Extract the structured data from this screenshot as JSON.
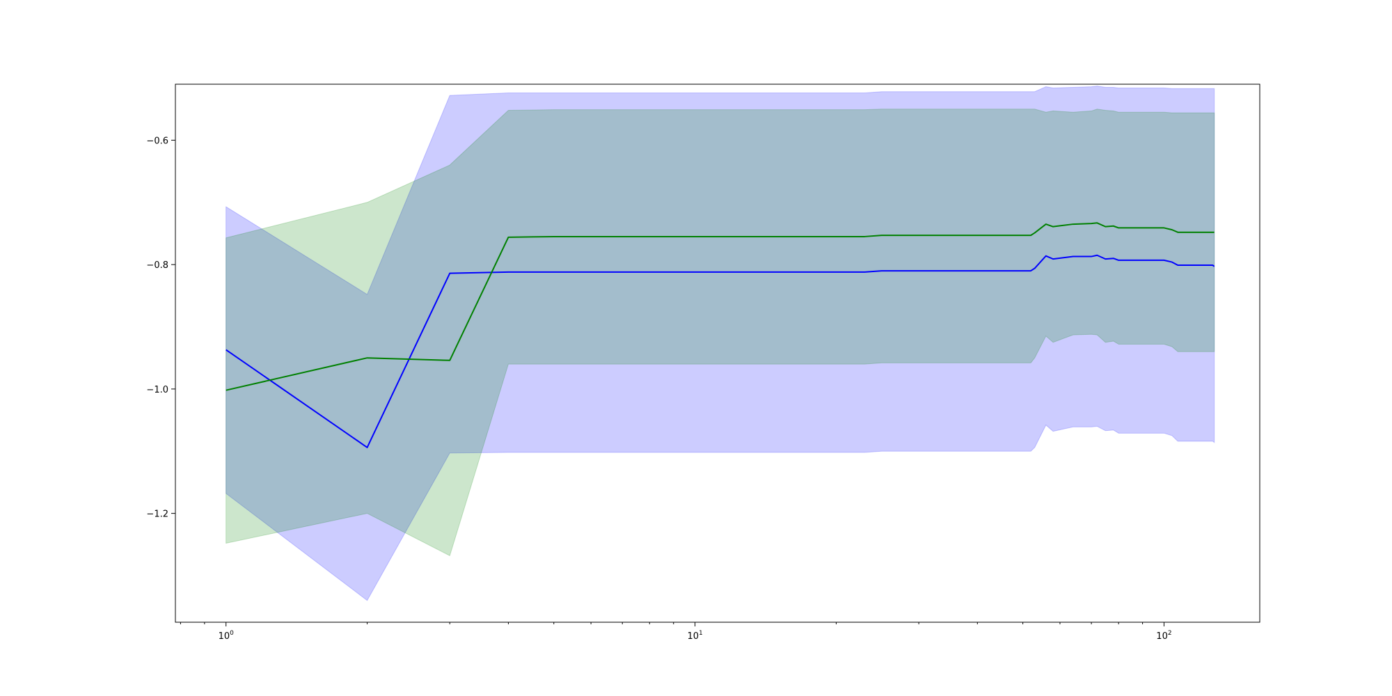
{
  "chart_data": {
    "type": "line",
    "title": "",
    "xlabel": "",
    "ylabel": "",
    "xscale": "log",
    "xlim": [
      0.78,
      160
    ],
    "ylim": [
      -1.375,
      -0.51
    ],
    "grid": false,
    "x_ticks": [
      {
        "value": 1,
        "base": "10",
        "exp": "0"
      },
      {
        "value": 10,
        "base": "10",
        "exp": "1"
      },
      {
        "value": 100,
        "base": "10",
        "exp": "2"
      }
    ],
    "y_ticks": [
      {
        "value": -0.6,
        "label": "−0.6"
      },
      {
        "value": -0.8,
        "label": "−0.8"
      },
      {
        "value": -1.0,
        "label": "−1.0"
      },
      {
        "value": -1.2,
        "label": "−1.2"
      }
    ],
    "series": [
      {
        "color": "#0000ff",
        "band_color": "#0000ff",
        "band_opacity": 0.2,
        "points": [
          {
            "x": 1,
            "y": -0.937,
            "lo": -1.168,
            "hi": -0.707
          },
          {
            "x": 2,
            "y": -1.094,
            "lo": -1.34,
            "hi": -0.848
          },
          {
            "x": 3,
            "y": -0.814,
            "lo": -1.103,
            "hi": -0.528
          },
          {
            "x": 4,
            "y": -0.812,
            "lo": -1.102,
            "hi": -0.524
          },
          {
            "x": 10,
            "y": -0.812,
            "lo": -1.102,
            "hi": -0.524
          },
          {
            "x": 23,
            "y": -0.812,
            "lo": -1.102,
            "hi": -0.524
          },
          {
            "x": 25,
            "y": -0.81,
            "lo": -1.1,
            "hi": -0.522
          },
          {
            "x": 52,
            "y": -0.81,
            "lo": -1.1,
            "hi": -0.522
          },
          {
            "x": 53,
            "y": -0.806,
            "lo": -1.094,
            "hi": -0.522
          },
          {
            "x": 56,
            "y": -0.786,
            "lo": -1.058,
            "hi": -0.514
          },
          {
            "x": 58,
            "y": -0.791,
            "lo": -1.068,
            "hi": -0.516
          },
          {
            "x": 64,
            "y": -0.787,
            "lo": -1.061,
            "hi": -0.515
          },
          {
            "x": 70,
            "y": -0.787,
            "lo": -1.061,
            "hi": -0.514
          },
          {
            "x": 72,
            "y": -0.785,
            "lo": -1.06,
            "hi": -0.513
          },
          {
            "x": 75,
            "y": -0.791,
            "lo": -1.067,
            "hi": -0.515
          },
          {
            "x": 78,
            "y": -0.79,
            "lo": -1.066,
            "hi": -0.515
          },
          {
            "x": 80,
            "y": -0.793,
            "lo": -1.071,
            "hi": -0.516
          },
          {
            "x": 100,
            "y": -0.793,
            "lo": -1.071,
            "hi": -0.516
          },
          {
            "x": 104,
            "y": -0.796,
            "lo": -1.075,
            "hi": -0.517
          },
          {
            "x": 107,
            "y": -0.801,
            "lo": -1.084,
            "hi": -0.517
          },
          {
            "x": 127,
            "y": -0.801,
            "lo": -1.084,
            "hi": -0.517
          },
          {
            "x": 128,
            "y": -0.803,
            "lo": -1.086,
            "hi": -0.517
          }
        ]
      },
      {
        "color": "#008000",
        "band_color": "#008000",
        "band_opacity": 0.2,
        "points": [
          {
            "x": 1,
            "y": -1.002,
            "lo": -1.248,
            "hi": -0.757
          },
          {
            "x": 2,
            "y": -0.95,
            "lo": -1.2,
            "hi": -0.7
          },
          {
            "x": 3,
            "y": -0.954,
            "lo": -1.268,
            "hi": -0.64
          },
          {
            "x": 4,
            "y": -0.756,
            "lo": -0.96,
            "hi": -0.552
          },
          {
            "x": 5,
            "y": -0.755,
            "lo": -0.96,
            "hi": -0.551
          },
          {
            "x": 23,
            "y": -0.755,
            "lo": -0.96,
            "hi": -0.551
          },
          {
            "x": 25,
            "y": -0.753,
            "lo": -0.958,
            "hi": -0.55
          },
          {
            "x": 52,
            "y": -0.753,
            "lo": -0.958,
            "hi": -0.55
          },
          {
            "x": 53,
            "y": -0.749,
            "lo": -0.95,
            "hi": -0.55
          },
          {
            "x": 56,
            "y": -0.735,
            "lo": -0.915,
            "hi": -0.555
          },
          {
            "x": 58,
            "y": -0.739,
            "lo": -0.925,
            "hi": -0.553
          },
          {
            "x": 64,
            "y": -0.735,
            "lo": -0.913,
            "hi": -0.555
          },
          {
            "x": 70,
            "y": -0.734,
            "lo": -0.912,
            "hi": -0.553
          },
          {
            "x": 72,
            "y": -0.733,
            "lo": -0.913,
            "hi": -0.55
          },
          {
            "x": 75,
            "y": -0.739,
            "lo": -0.925,
            "hi": -0.552
          },
          {
            "x": 78,
            "y": -0.738,
            "lo": -0.923,
            "hi": -0.553
          },
          {
            "x": 80,
            "y": -0.741,
            "lo": -0.928,
            "hi": -0.555
          },
          {
            "x": 100,
            "y": -0.741,
            "lo": -0.928,
            "hi": -0.555
          },
          {
            "x": 104,
            "y": -0.744,
            "lo": -0.932,
            "hi": -0.556
          },
          {
            "x": 107,
            "y": -0.748,
            "lo": -0.94,
            "hi": -0.556
          },
          {
            "x": 128,
            "y": -0.748,
            "lo": -0.94,
            "hi": -0.556
          }
        ]
      }
    ]
  }
}
